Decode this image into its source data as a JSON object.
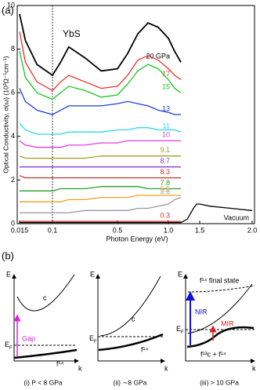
{
  "chart_data": {
    "type": "line",
    "panel_label": "(a)",
    "annotation": "YbS",
    "xlabel": "Photon Energy (eV)",
    "ylabel": "Optical Conductivity, σ(ω) (10³Ω⁻¹cm⁻¹)",
    "xlim": [
      0.015,
      2.0
    ],
    "xticks": [
      0.015,
      0.1,
      0.5,
      {
        "value": 1,
        "label": "1.0"
      },
      1.5,
      {
        "value": 2,
        "label": "2.0"
      }
    ],
    "ylim": [
      0,
      10
    ],
    "yticks": [
      0,
      2,
      4,
      6,
      8,
      10
    ],
    "x": [
      0.015,
      0.03,
      0.06,
      0.1,
      0.15,
      0.2,
      0.3,
      0.4,
      0.5,
      0.6,
      0.7,
      0.8,
      0.9,
      1.0,
      1.1,
      1.2
    ],
    "series": [
      {
        "name": "20 GPa",
        "color": "#000000",
        "values": [
          9.6,
          8.4,
          7.3,
          6.8,
          7.4,
          8.1,
          7.6,
          7.0,
          7.1,
          7.8,
          8.7,
          9.2,
          9.0,
          8.5,
          7.9,
          7.4
        ]
      },
      {
        "name": "17",
        "color": "#e8312a",
        "values": [
          8.8,
          7.4,
          6.5,
          6.1,
          6.5,
          6.8,
          6.5,
          6.2,
          6.3,
          6.8,
          7.5,
          7.7,
          7.5,
          7.1,
          6.8,
          6.6
        ]
      },
      {
        "name": "15",
        "color": "#1fc51f",
        "values": [
          7.9,
          6.7,
          6.0,
          5.7,
          6.0,
          6.3,
          6.1,
          5.8,
          5.9,
          6.4,
          7.0,
          7.3,
          7.1,
          6.6,
          6.2,
          6.0
        ]
      },
      {
        "name": "13",
        "color": "#1f3fd8",
        "values": [
          6.2,
          5.6,
          5.2,
          5.0,
          5.2,
          5.4,
          5.4,
          5.4,
          5.5,
          5.6,
          5.5,
          5.4,
          5.2,
          5.1,
          5.0,
          5.0
        ]
      },
      {
        "name": "11",
        "color": "#2fd6e6",
        "values": [
          4.6,
          4.3,
          4.1,
          4.1,
          4.1,
          4.2,
          4.2,
          4.2,
          4.3,
          4.3,
          4.4,
          4.4,
          4.3,
          4.3,
          4.3,
          4.2
        ]
      },
      {
        "name": "10",
        "color": "#e03ce0",
        "values": [
          3.8,
          3.6,
          3.5,
          3.5,
          3.5,
          3.6,
          3.6,
          3.7,
          3.7,
          3.8,
          3.8,
          3.8,
          3.8,
          3.8,
          3.8,
          3.8
        ]
      },
      {
        "name": "9.1",
        "color": "#a0a020",
        "values": [
          3.1,
          3.0,
          3.0,
          3.0,
          3.0,
          3.0,
          3.0,
          3.1,
          3.1,
          3.1,
          3.1,
          3.1,
          3.1,
          3.1,
          3.1,
          3.1
        ]
      },
      {
        "name": "8.7",
        "color": "#8a3ad0",
        "values": [
          2.6,
          2.6,
          2.6,
          2.6,
          2.6,
          2.6,
          2.6,
          2.6,
          2.6,
          2.6,
          2.6,
          2.6,
          2.6,
          2.6,
          2.6,
          2.6
        ]
      },
      {
        "name": "8.3",
        "color": "#d03030",
        "values": [
          2.2,
          2.1,
          2.1,
          2.1,
          2.1,
          2.1,
          2.1,
          2.1,
          2.1,
          2.1,
          2.1,
          2.1,
          2.1,
          2.1,
          2.1,
          2.1
        ]
      },
      {
        "name": "7.8",
        "color": "#2aa02a",
        "values": [
          1.5,
          1.5,
          1.5,
          1.5,
          1.6,
          1.6,
          1.6,
          1.7,
          1.7,
          1.7,
          1.7,
          1.6,
          1.6,
          1.6,
          1.6,
          1.6
        ]
      },
      {
        "name": "5.5",
        "color": "#f0a020",
        "values": [
          1.0,
          1.0,
          1.0,
          1.0,
          1.0,
          1.1,
          1.1,
          1.2,
          1.2,
          1.2,
          1.3,
          1.3,
          1.3,
          1.3,
          1.3,
          1.3
        ]
      },
      {
        "name": "3.6",
        "color": "#999999",
        "values": [
          0.5,
          0.5,
          0.5,
          0.5,
          0.5,
          0.5,
          0.6,
          0.6,
          0.6,
          0.6,
          0.7,
          0.7,
          0.8,
          0.9,
          1.1,
          1.2
        ]
      },
      {
        "name": "0.3",
        "color": "#d03030",
        "values": [
          0.1,
          0.1,
          0.1,
          0.1,
          0.1,
          0.1,
          0.1,
          0.1,
          0.1,
          0.1,
          0.1,
          0.1,
          0.1,
          0.1,
          0.1,
          0.1
        ]
      },
      {
        "name": "Vacuum",
        "color": "#000000",
        "x": [
          0.015,
          1.2,
          1.3,
          1.4,
          1.45,
          1.5,
          1.6,
          1.8,
          2.0
        ],
        "values": [
          0.05,
          0.05,
          0.2,
          0.7,
          0.9,
          0.9,
          0.8,
          0.7,
          0.6
        ]
      }
    ]
  },
  "diagram": {
    "label": "(b)",
    "panels": [
      {
        "caption": "(i) P < 8 GPa",
        "e_axis": "E",
        "k_axis": "k",
        "band": "c",
        "f_level": "f¹⁴",
        "ef": "E",
        "ef_sub": "F",
        "gap": "Gap"
      },
      {
        "caption": "(ii) ∼8 GPa",
        "e_axis": "E",
        "k_axis": "k",
        "band": "c",
        "f_level": "f¹⁴",
        "ef": "E",
        "ef_sub": "F"
      },
      {
        "caption": "(iii) > 10 GPa",
        "e_axis": "E",
        "k_axis": "k",
        "final": "f¹⁴ final state",
        "nir": "NIR",
        "mir": "MIR",
        "ef": "E",
        "ef_sub": "F",
        "mixed": "f¹³c + f¹⁴"
      }
    ]
  }
}
